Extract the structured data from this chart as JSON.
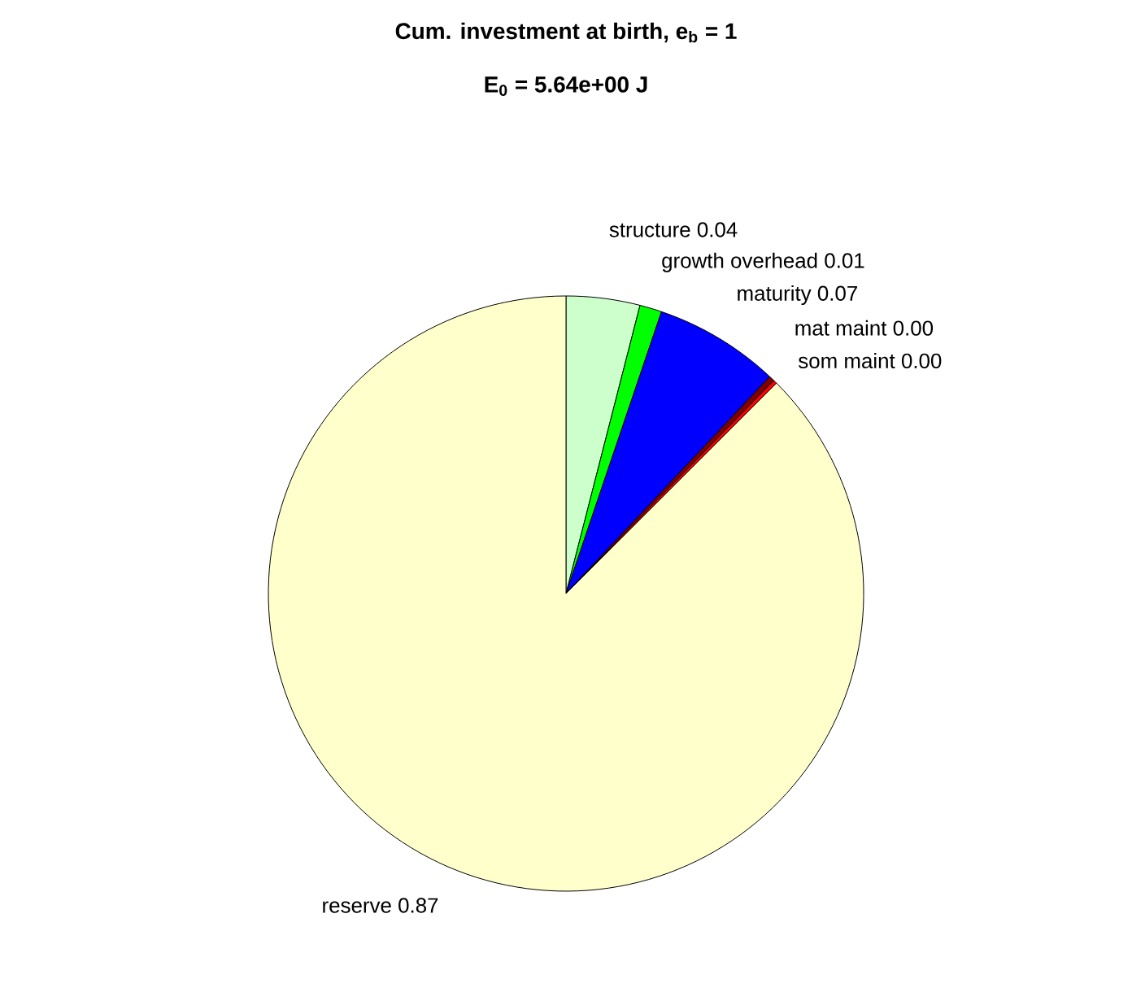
{
  "chart_data": {
    "type": "pie",
    "title": "Cum. investment at birth, e$_{b}$ = 1",
    "subtitle": "E$_{0}$ = 5.64e+00 J",
    "categories": [
      "structure",
      "growth overhead",
      "maturity",
      "mat maint",
      "som maint",
      "reserve"
    ],
    "values": [
      0.04,
      0.012,
      0.068,
      0.003,
      0.002,
      0.875
    ],
    "value_labels": [
      "0.04",
      "0.01",
      "0.07",
      "0.00",
      "0.00",
      "0.87"
    ],
    "colors": [
      "#ccffcc",
      "#00ff00",
      "#0000ff",
      "#800000",
      "#ff0000",
      "#ffffcc"
    ]
  }
}
